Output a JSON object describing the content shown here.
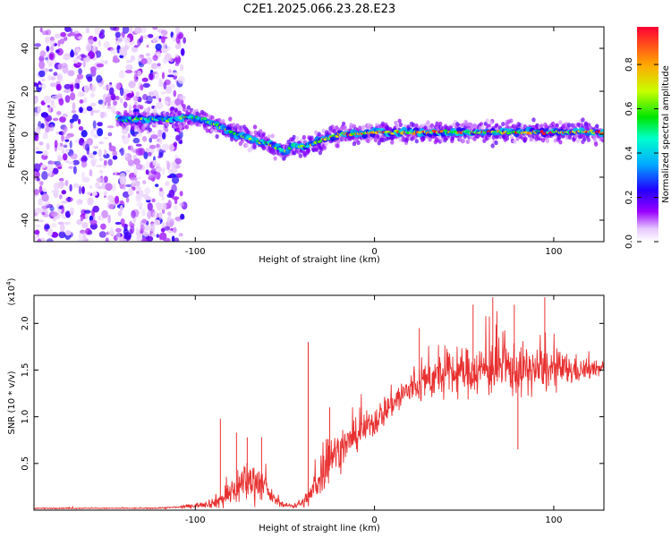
{
  "title": "C2E1.2025.066.23.28.E23",
  "colors": {
    "signal": "#e83030",
    "frame": "#000000"
  },
  "chart_data": [
    {
      "type": "heatmap",
      "name": "spectrogram",
      "xlabel": "Height of straight line (km)",
      "ylabel": "Frequency (Hz)",
      "xlim": [
        -190,
        128
      ],
      "ylim": [
        -50,
        50
      ],
      "x_ticks": [
        -100,
        0,
        100
      ],
      "y_ticks": [
        -40,
        -20,
        0,
        20,
        40
      ],
      "colorbar": {
        "label": "Normalized spectral amplitude",
        "range": [
          0,
          0.97
        ],
        "ticks": [
          0.0,
          0.2,
          0.4,
          0.6,
          0.8
        ]
      },
      "noise_region_x": [
        -190,
        -106
      ],
      "track": {
        "x": [
          -143,
          -130,
          -115,
          -106,
          -100,
          -90,
          -80,
          -70,
          -60,
          -50,
          -45,
          -40,
          -30,
          -20,
          -10,
          0,
          20,
          40,
          60,
          80,
          100,
          115,
          128
        ],
        "frequency": [
          7,
          7,
          7,
          8,
          8,
          5,
          1,
          -2,
          -4,
          -8,
          -5,
          -6,
          -3,
          0,
          0,
          1,
          1,
          1,
          1,
          1,
          1,
          1,
          1
        ]
      }
    },
    {
      "type": "line",
      "name": "snr",
      "xlabel": "Height of straight line (km)",
      "ylabel": "SNR (10 * v/v)",
      "y_multiplier": "(x10",
      "y_multiplier_exp": "4",
      "y_multiplier_close": ")",
      "xlim": [
        -190,
        128
      ],
      "ylim": [
        0,
        2.3
      ],
      "x_ticks": [
        -100,
        0,
        100
      ],
      "y_ticks": [
        0.5,
        1.0,
        1.5,
        2.0
      ],
      "envelope": {
        "x": [
          -190,
          -125,
          -110,
          -100,
          -90,
          -85,
          -80,
          -75,
          -72,
          -68,
          -63,
          -60,
          -55,
          -50,
          -45,
          -40,
          -36,
          -32,
          -28,
          -25,
          -22,
          -18,
          -15,
          -10,
          -5,
          0,
          5,
          10,
          20,
          30,
          40,
          50,
          60,
          70,
          80,
          90,
          100,
          110,
          120,
          128
        ],
        "mean": [
          0.02,
          0.02,
          0.03,
          0.05,
          0.08,
          0.12,
          0.18,
          0.28,
          0.3,
          0.32,
          0.3,
          0.2,
          0.1,
          0.05,
          0.05,
          0.08,
          0.15,
          0.3,
          0.5,
          0.6,
          0.62,
          0.65,
          0.72,
          0.8,
          0.88,
          0.95,
          1.05,
          1.15,
          1.3,
          1.4,
          1.45,
          1.48,
          1.5,
          1.52,
          1.5,
          1.5,
          1.5,
          1.5,
          1.5,
          1.52
        ],
        "spread": [
          0.01,
          0.01,
          0.02,
          0.04,
          0.1,
          0.2,
          0.3,
          0.4,
          0.4,
          0.4,
          0.35,
          0.2,
          0.08,
          0.04,
          0.05,
          0.1,
          0.2,
          0.35,
          0.6,
          0.5,
          0.35,
          0.35,
          0.3,
          0.3,
          0.3,
          0.3,
          0.3,
          0.3,
          0.35,
          0.4,
          0.45,
          0.45,
          0.5,
          0.55,
          0.5,
          0.45,
          0.4,
          0.3,
          0.18,
          0.12
        ]
      },
      "peaks": [
        {
          "x": -86,
          "y": 0.98
        },
        {
          "x": -77,
          "y": 0.83
        },
        {
          "x": -71,
          "y": 0.78
        },
        {
          "x": -63,
          "y": 0.78
        },
        {
          "x": -37,
          "y": 1.8
        },
        {
          "x": -25,
          "y": 1.1
        },
        {
          "x": 25,
          "y": 1.95
        },
        {
          "x": 55,
          "y": 2.2
        },
        {
          "x": 66,
          "y": 2.28
        },
        {
          "x": 78,
          "y": 2.2
        },
        {
          "x": 95,
          "y": 2.28
        },
        {
          "x": 80,
          "y": 0.65
        }
      ]
    }
  ]
}
